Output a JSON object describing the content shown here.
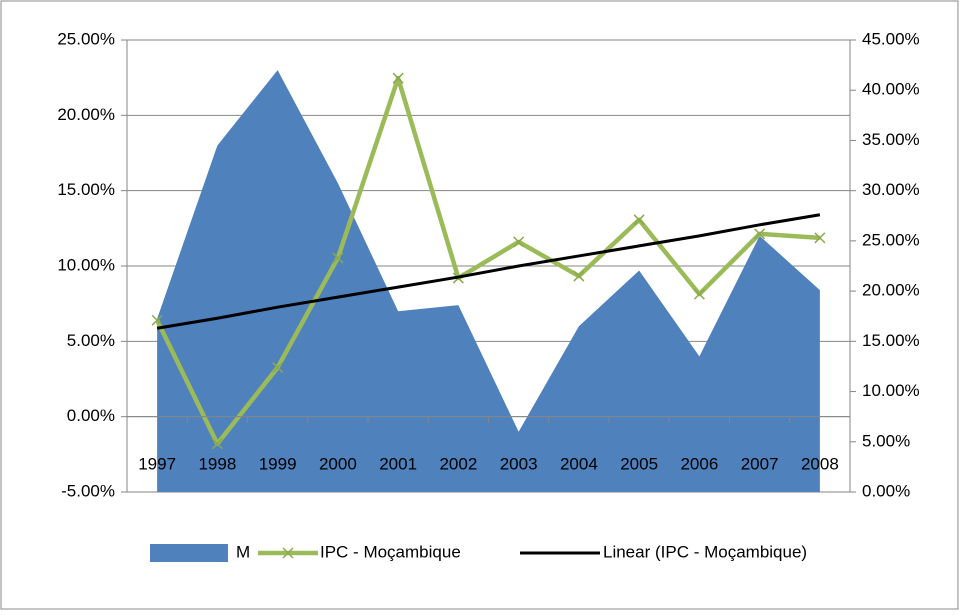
{
  "chart_data": {
    "type": "area-line",
    "categories": [
      "1997",
      "1998",
      "1999",
      "2000",
      "2001",
      "2002",
      "2003",
      "2004",
      "2005",
      "2006",
      "2007",
      "2008"
    ],
    "series": [
      {
        "name": "M",
        "type": "area",
        "axis": "y",
        "color": "#4f81bd",
        "values": [
          6.5,
          18.0,
          23.0,
          15.5,
          7.0,
          7.4,
          -1.0,
          6.0,
          9.7,
          4.0,
          12.0,
          8.4
        ]
      },
      {
        "name": "IPC - Moçambique",
        "type": "line",
        "axis": "y2",
        "color": "#9bbb59",
        "values": [
          17.1,
          4.8,
          12.4,
          23.3,
          41.2,
          21.3,
          24.9,
          21.5,
          27.1,
          19.7,
          25.7,
          25.3
        ]
      },
      {
        "name": "Linear (IPC - Moçambique)",
        "type": "line",
        "axis": "y2",
        "color": "#000000",
        "values": [
          16.3,
          17.3,
          18.4,
          19.4,
          20.4,
          21.4,
          22.5,
          23.5,
          24.5,
          25.5,
          26.6,
          27.6
        ]
      }
    ],
    "ylim": [
      -5,
      25
    ],
    "yticks": [
      {
        "value": -5,
        "label": "-5.00%"
      },
      {
        "value": 0,
        "label": "0.00%"
      },
      {
        "value": 5,
        "label": "5.00%"
      },
      {
        "value": 10,
        "label": "10.00%"
      },
      {
        "value": 15,
        "label": "15.00%"
      },
      {
        "value": 20,
        "label": "20.00%"
      },
      {
        "value": 25,
        "label": "25.00%"
      }
    ],
    "y2lim": [
      0,
      45
    ],
    "y2ticks": [
      {
        "value": 0,
        "label": "0.00%"
      },
      {
        "value": 5,
        "label": "5.00%"
      },
      {
        "value": 10,
        "label": "10.00%"
      },
      {
        "value": 15,
        "label": "15.00%"
      },
      {
        "value": 20,
        "label": "20.00%"
      },
      {
        "value": 25,
        "label": "25.00%"
      },
      {
        "value": 30,
        "label": "30.00%"
      },
      {
        "value": 35,
        "label": "35.00%"
      },
      {
        "value": 40,
        "label": "40.00%"
      },
      {
        "value": 45,
        "label": "45.00%"
      }
    ],
    "grid": true,
    "legend": "bottom"
  }
}
